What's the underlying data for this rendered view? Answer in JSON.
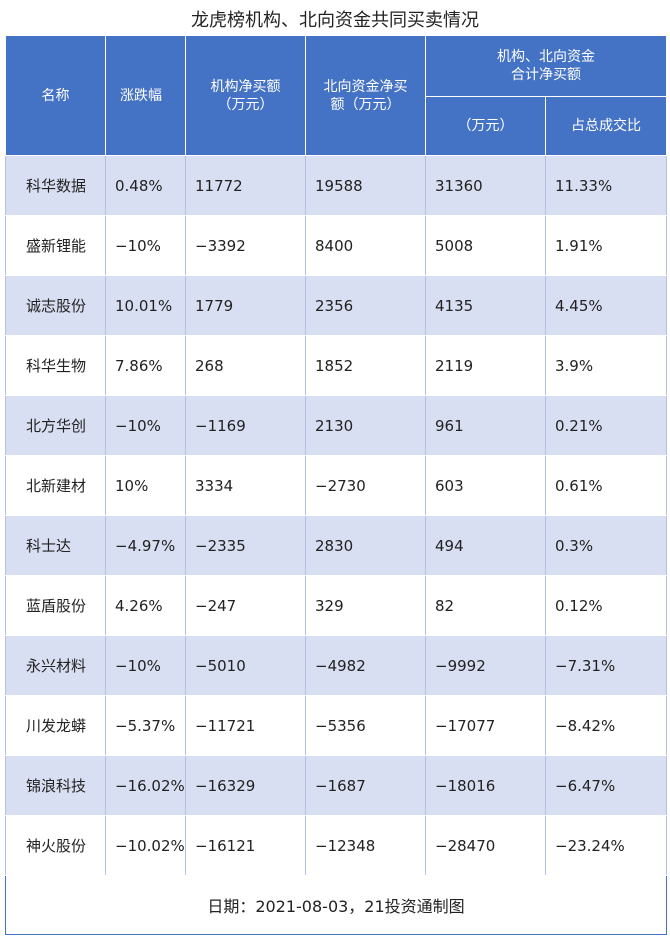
{
  "title": "龙虎榜机构、北向资金共同买卖情况",
  "headers": {
    "name": "名称",
    "change": "涨跌幅",
    "inst_line1": "机构净买额",
    "inst_line2": "（万元）",
    "north_line1": "北向资金净买",
    "north_line2": "额（万元）",
    "combined_line1": "机构、北向资金",
    "combined_line2": "合计净买额",
    "combined_unit": "（万元）",
    "share": "占总成交比"
  },
  "rows": [
    {
      "name": "科华数据",
      "change": "0.48%",
      "inst": "11772",
      "north": "19588",
      "total": "31360",
      "share": "11.33%"
    },
    {
      "name": "盛新锂能",
      "change": "−10%",
      "inst": "−3392",
      "north": "8400",
      "total": "5008",
      "share": "1.91%"
    },
    {
      "name": "诚志股份",
      "change": "10.01%",
      "inst": "1779",
      "north": "2356",
      "total": "4135",
      "share": "4.45%"
    },
    {
      "name": "科华生物",
      "change": "7.86%",
      "inst": "268",
      "north": "1852",
      "total": "2119",
      "share": "3.9%"
    },
    {
      "name": "北方华创",
      "change": "−10%",
      "inst": "−1169",
      "north": "2130",
      "total": "961",
      "share": "0.21%"
    },
    {
      "name": "北新建材",
      "change": "10%",
      "inst": "3334",
      "north": "−2730",
      "total": "603",
      "share": "0.61%"
    },
    {
      "name": "科士达",
      "change": "−4.97%",
      "inst": "−2335",
      "north": "2830",
      "total": "494",
      "share": "0.3%"
    },
    {
      "name": "蓝盾股份",
      "change": "4.26%",
      "inst": "−247",
      "north": "329",
      "total": "82",
      "share": "0.12%"
    },
    {
      "name": "永兴材料",
      "change": "−10%",
      "inst": "−5010",
      "north": "−4982",
      "total": "−9992",
      "share": "−7.31%"
    },
    {
      "name": "川发龙蟒",
      "change": "−5.37%",
      "inst": "−11721",
      "north": "−5356",
      "total": "−17077",
      "share": "−8.42%"
    },
    {
      "name": "锦浪科技",
      "change": "−16.02%",
      "inst": "−16329",
      "north": "−1687",
      "total": "−18016",
      "share": "−6.47%"
    },
    {
      "name": "神火股份",
      "change": "−10.02%",
      "inst": "−16121",
      "north": "−12348",
      "total": "−28470",
      "share": "−23.24%"
    }
  ],
  "footer": "日期：2021-08-03，21投资通制图",
  "colors": {
    "header_bg": "#4472c4",
    "stripe": "#d9dff2"
  }
}
